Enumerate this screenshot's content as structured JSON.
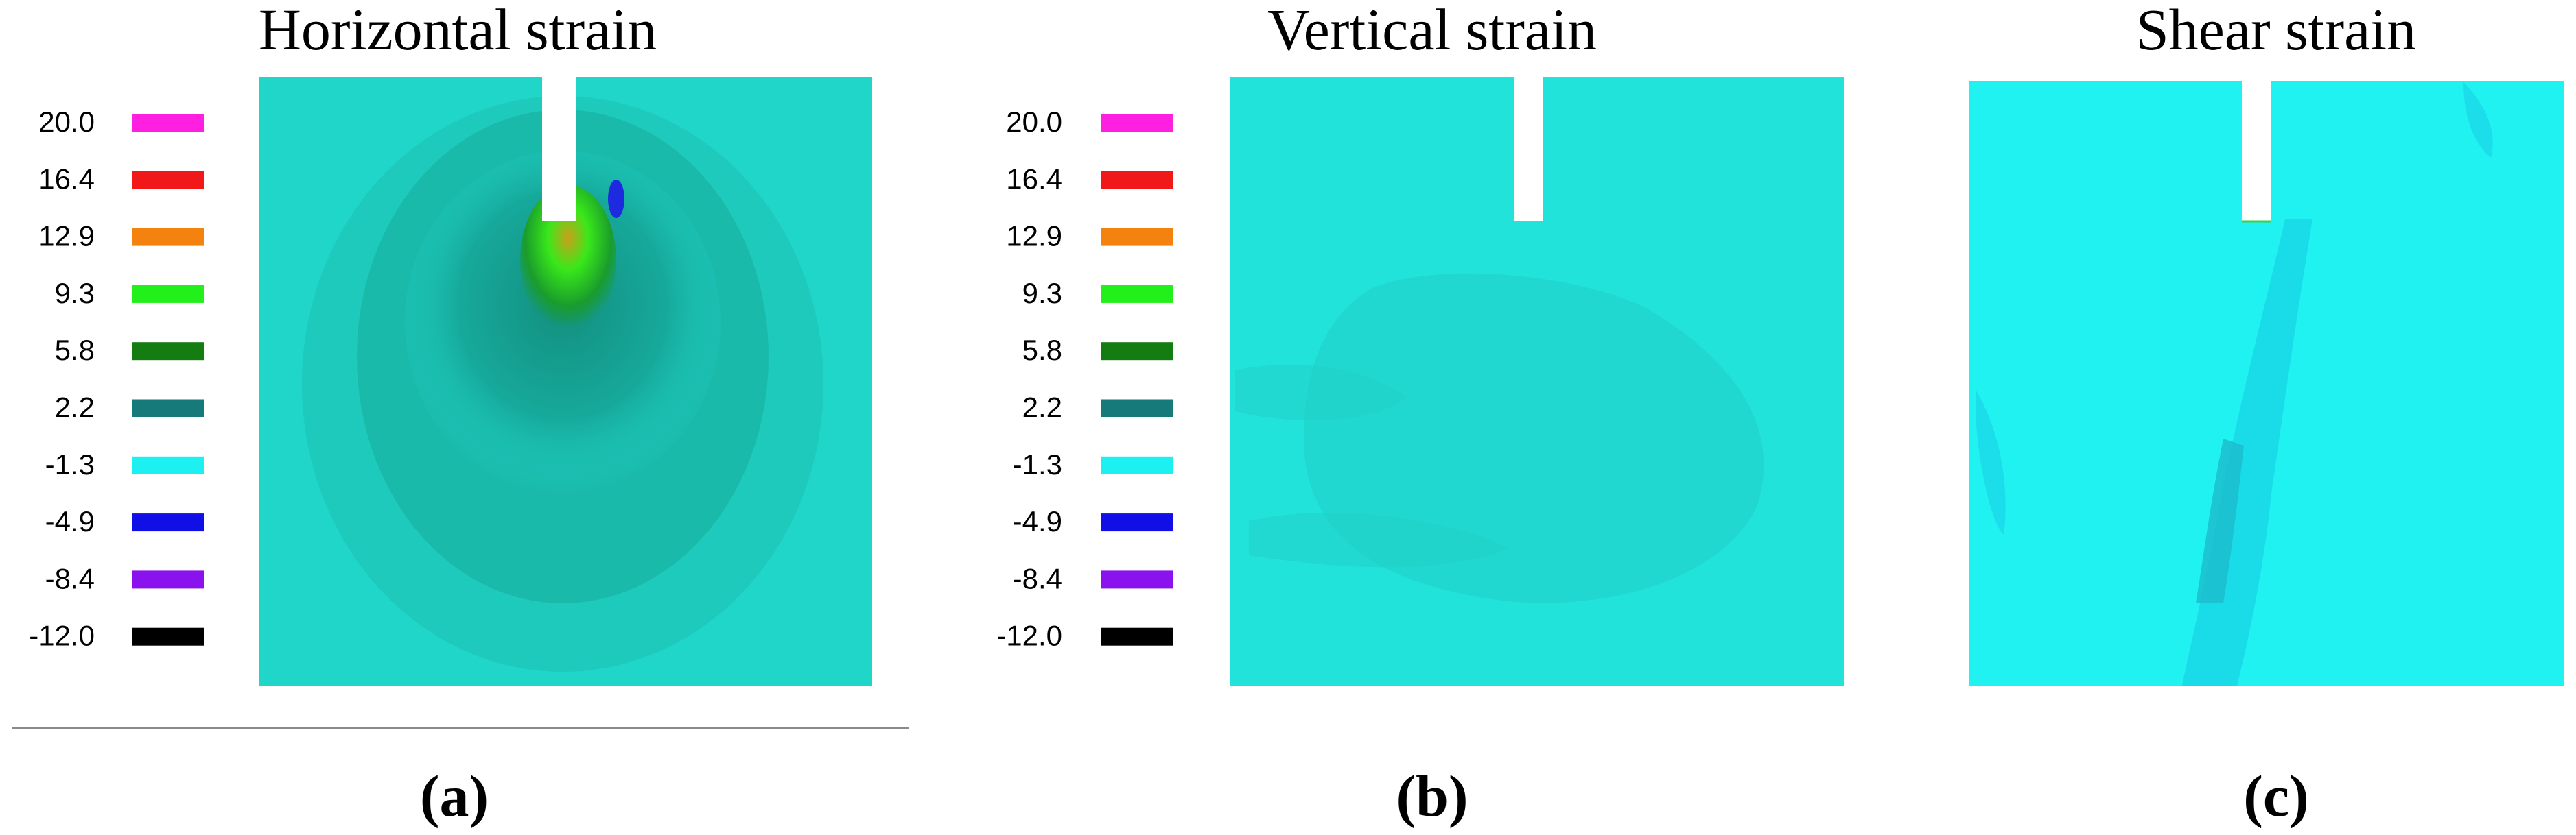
{
  "panels": [
    {
      "title": "Horizontal strain",
      "label": "(a)"
    },
    {
      "title": "Vertical strain",
      "label": "(b)"
    },
    {
      "title": "Shear strain",
      "label": "(c)"
    }
  ],
  "legend": {
    "entries": [
      {
        "value": "20.0",
        "color": "#ff1fe0"
      },
      {
        "value": "16.4",
        "color": "#f01818"
      },
      {
        "value": "12.9",
        "color": "#f4820e"
      },
      {
        "value": "9.3",
        "color": "#22f01a"
      },
      {
        "value": "5.8",
        "color": "#137d12"
      },
      {
        "value": "2.2",
        "color": "#167a7a"
      },
      {
        "value": "-1.3",
        "color": "#1df0f0"
      },
      {
        "value": "-4.9",
        "color": "#1010e6"
      },
      {
        "value": "-8.4",
        "color": "#8a12ef"
      },
      {
        "value": "-12.0",
        "color": "#000000"
      }
    ]
  },
  "colors": {
    "field_horizontal": "#1fd6c8",
    "field_vertical": "#22e3da",
    "field_shear": "#1ff2f0"
  }
}
